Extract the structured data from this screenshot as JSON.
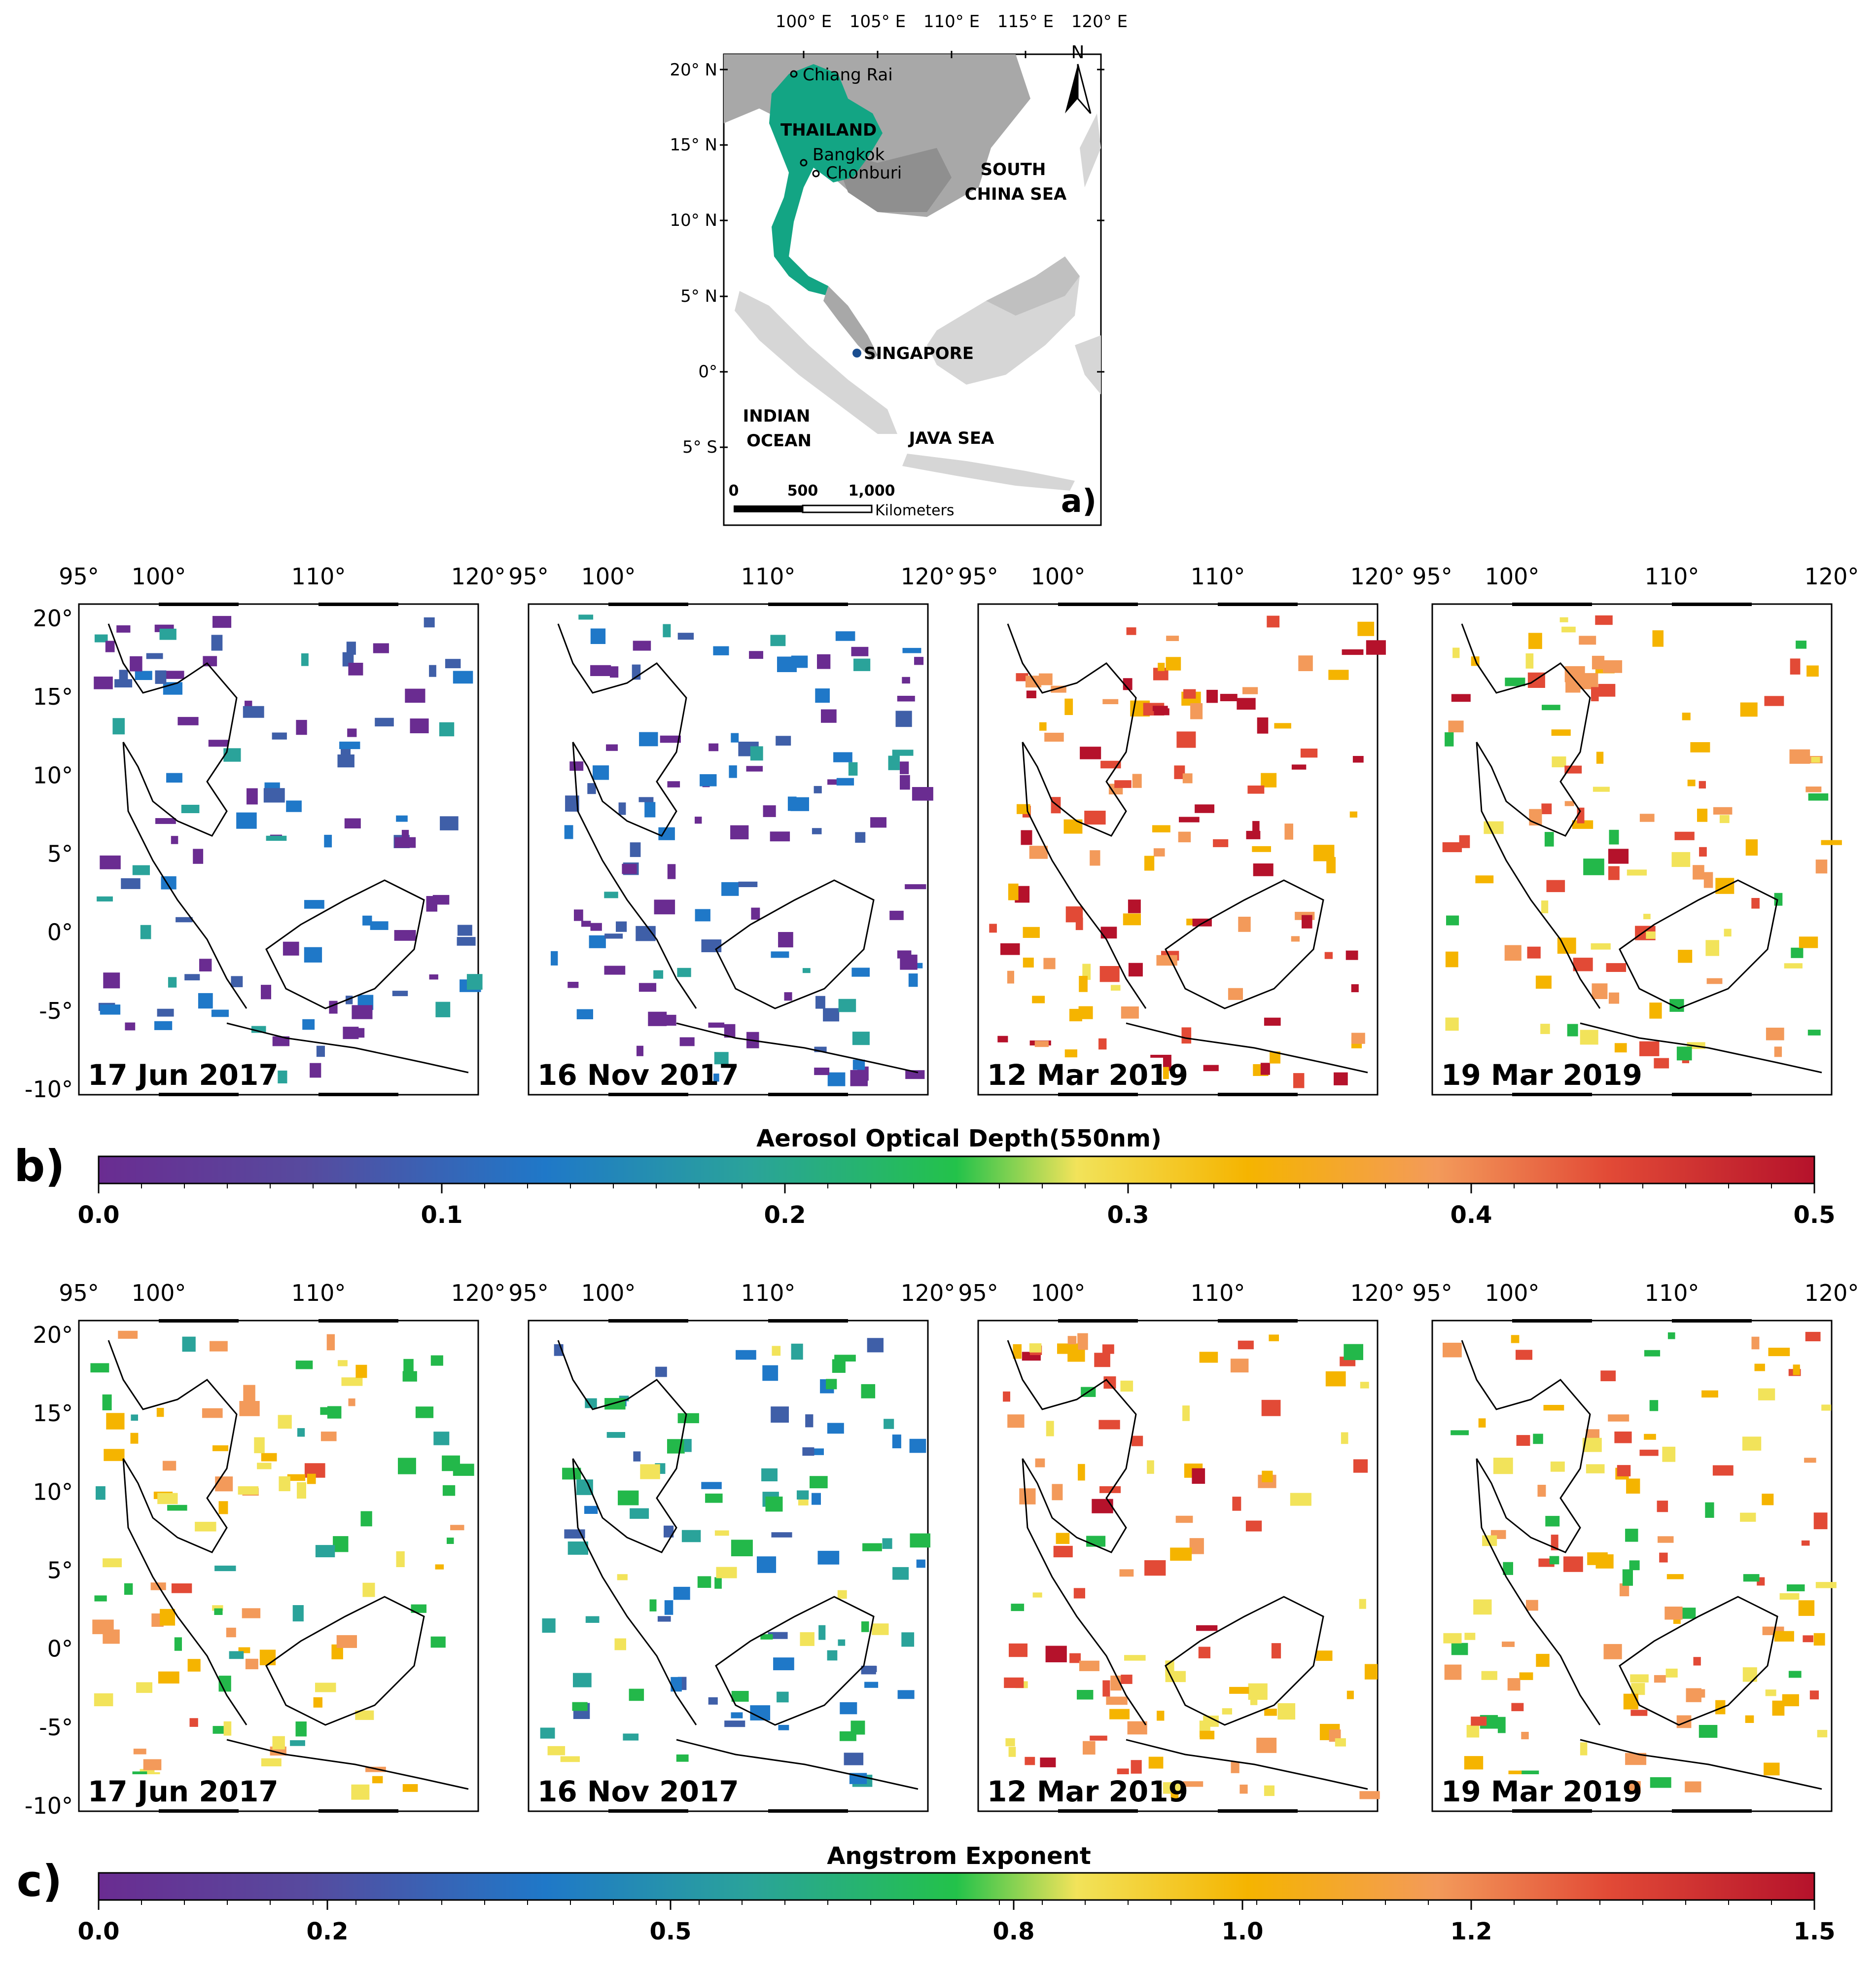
{
  "inset_map": {
    "panel_label": "a)",
    "lon_ticks": [
      "100° E",
      "105° E",
      "110° E",
      "115° E",
      "120° E"
    ],
    "lat_ticks": [
      "20° N",
      "15° N",
      "10° N",
      "5° N",
      "0°",
      "5° S"
    ],
    "north_label": "N",
    "places": {
      "chiang_rai": "Chiang Rai",
      "thailand": "THAILAND",
      "bangkok": "Bangkok",
      "chonburi": "Chonburi",
      "south_china_sea_1": "SOUTH",
      "south_china_sea_2": "CHINA SEA",
      "singapore": "SINGAPORE",
      "indian_ocean_1": "INDIAN",
      "indian_ocean_2": "OCEAN",
      "java_sea": "JAVA SEA"
    },
    "scale_bar": {
      "t0": "0",
      "t1": "500",
      "t2": "1,000",
      "unit": "Kilometers"
    },
    "colors": {
      "thailand": "#13a584",
      "land_dark": "#a8a8a8",
      "land_light": "#d6d6d6",
      "singapore": "#1a4d8f"
    }
  },
  "map_grid": {
    "lon_ticks": [
      "95°",
      "100°",
      "110°",
      "120°"
    ],
    "lat_ticks": [
      "20°",
      "15°",
      "10°",
      "5°",
      "0°",
      "-5°",
      "-10°"
    ],
    "dates": [
      "17 Jun 2017",
      "16 Nov 2017",
      "12 Mar 2019",
      "19 Mar 2019"
    ]
  },
  "panel_b": {
    "panel_label": "b)",
    "colorbar_title": "Aerosol Optical Depth(550nm)",
    "colorbar_ticks": [
      "0.0",
      "0.1",
      "0.2",
      "0.3",
      "0.4",
      "0.5"
    ],
    "colorbar_range": [
      0.0,
      0.5
    ],
    "maps": [
      {
        "date": "17 Jun 2017",
        "level": 0.05
      },
      {
        "date": "16 Nov 2017",
        "level": 0.04
      },
      {
        "date": "12 Mar 2019",
        "level": 0.42
      },
      {
        "date": "19 Mar 2019",
        "level": 0.35
      }
    ]
  },
  "panel_c": {
    "panel_label": "c)",
    "colorbar_title": "Angstrom Exponent",
    "colorbar_ticks": [
      "0.0",
      "0.2",
      "0.5",
      "0.8",
      "1.0",
      "1.2",
      "1.5"
    ],
    "colorbar_range": [
      0.0,
      1.5
    ],
    "maps": [
      {
        "date": "17 Jun 2017",
        "level": 0.9
      },
      {
        "date": "16 Nov 2017",
        "level": 0.5
      },
      {
        "date": "12 Mar 2019",
        "level": 1.1
      },
      {
        "date": "19 Mar 2019",
        "level": 1.0
      }
    ]
  },
  "colormap": [
    "#6a2c91",
    "#3f5fa8",
    "#1f78c8",
    "#2aa39a",
    "#23b84a",
    "#f2e35a",
    "#f5b400",
    "#f39a5a",
    "#e24a36",
    "#b5122b"
  ]
}
